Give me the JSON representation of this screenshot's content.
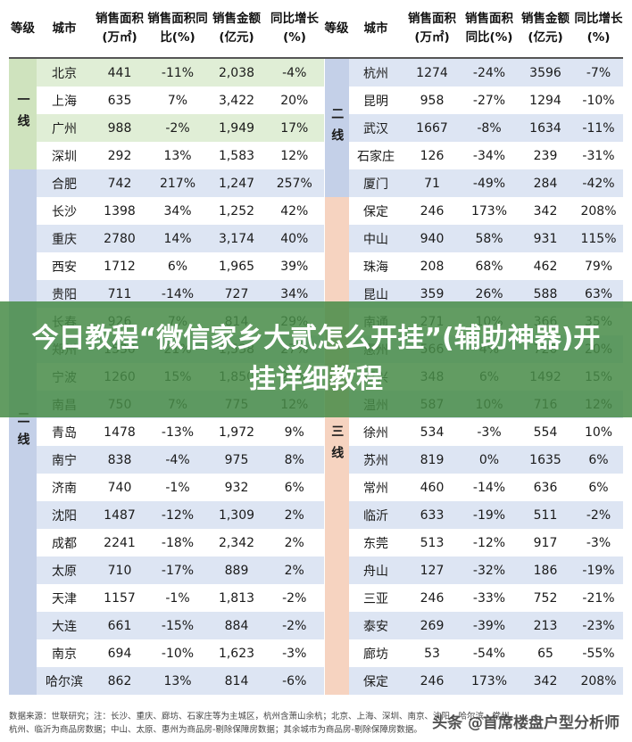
{
  "headers": [
    "等级",
    "城市",
    "销售面积(万㎡)",
    "销售面积同比(%)",
    "销售金额(亿元)",
    "同比增长(%)",
    "等级",
    "城市",
    "销售面积(万㎡)",
    "销售面积同比(%)",
    "销售金额(亿元)",
    "同比增长(%)"
  ],
  "tiers": {
    "left_tier1": "一线",
    "left_tier2": "二线",
    "right_tier2": "二线",
    "right_tier3": "三线"
  },
  "left_rows": [
    [
      "北京",
      "441",
      "-11%",
      "2,038",
      "-4%"
    ],
    [
      "上海",
      "635",
      "7%",
      "3,422",
      "20%"
    ],
    [
      "广州",
      "988",
      "-2%",
      "1,949",
      "17%"
    ],
    [
      "深圳",
      "292",
      "13%",
      "1,583",
      "12%"
    ],
    [
      "合肥",
      "742",
      "217%",
      "1,247",
      "257%"
    ],
    [
      "长沙",
      "1398",
      "34%",
      "1,252",
      "42%"
    ],
    [
      "重庆",
      "2780",
      "14%",
      "3,174",
      "40%"
    ],
    [
      "西安",
      "1712",
      "6%",
      "1,965",
      "39%"
    ],
    [
      "贵阳",
      "711",
      "-14%",
      "727",
      "34%"
    ],
    [
      "长春",
      "926",
      "7%",
      "814",
      "29%"
    ],
    [
      "郑州",
      "1530",
      "21%",
      "1,538",
      "27%"
    ],
    [
      "宁波",
      "1260",
      "15%",
      "1,850",
      "23%"
    ],
    [
      "南昌",
      "750",
      "7%",
      "775",
      "12%"
    ],
    [
      "青岛",
      "1478",
      "-13%",
      "1,972",
      "9%"
    ],
    [
      "南宁",
      "838",
      "-4%",
      "975",
      "8%"
    ],
    [
      "济南",
      "740",
      "-1%",
      "932",
      "6%"
    ],
    [
      "沈阳",
      "1487",
      "-12%",
      "1,309",
      "2%"
    ],
    [
      "成都",
      "2241",
      "-18%",
      "2,342",
      "2%"
    ],
    [
      "太原",
      "710",
      "-17%",
      "889",
      "2%"
    ],
    [
      "天津",
      "1157",
      "-1%",
      "1,813",
      "-2%"
    ],
    [
      "大连",
      "661",
      "-15%",
      "884",
      "-2%"
    ],
    [
      "南京",
      "694",
      "-10%",
      "1,623",
      "-3%"
    ],
    [
      "哈尔滨",
      "862",
      "13%",
      "814",
      "-6%"
    ]
  ],
  "right_rows": [
    [
      "杭州",
      "1274",
      "-24%",
      "3596",
      "-7%"
    ],
    [
      "昆明",
      "958",
      "-27%",
      "1294",
      "-10%"
    ],
    [
      "武汉",
      "1667",
      "-8%",
      "1634",
      "-11%"
    ],
    [
      "石家庄",
      "126",
      "-34%",
      "239",
      "-31%"
    ],
    [
      "厦门",
      "71",
      "-49%",
      "284",
      "-42%"
    ],
    [
      "保定",
      "246",
      "173%",
      "342",
      "208%"
    ],
    [
      "中山",
      "940",
      "58%",
      "931",
      "115%"
    ],
    [
      "珠海",
      "208",
      "68%",
      "462",
      "79%"
    ],
    [
      "昆山",
      "359",
      "26%",
      "588",
      "63%"
    ],
    [
      "南通",
      "271",
      "10%",
      "366",
      "35%"
    ],
    [
      "惠州",
      "566",
      "4%",
      "720",
      "20%"
    ],
    [
      "嘉兴",
      "348",
      "6%",
      "1492",
      "15%"
    ],
    [
      "温州",
      "587",
      "10%",
      "716",
      "12%"
    ],
    [
      "徐州",
      "534",
      "-3%",
      "554",
      "10%"
    ],
    [
      "苏州",
      "819",
      "0%",
      "1635",
      "6%"
    ],
    [
      "常州",
      "460",
      "-14%",
      "636",
      "6%"
    ],
    [
      "临沂",
      "633",
      "-19%",
      "511",
      "-2%"
    ],
    [
      "东莞",
      "513",
      "-12%",
      "917",
      "-3%"
    ],
    [
      "舟山",
      "127",
      "-32%",
      "186",
      "-19%"
    ],
    [
      "三亚",
      "246",
      "-33%",
      "752",
      "-21%"
    ],
    [
      "泰安",
      "269",
      "-39%",
      "213",
      "-23%"
    ],
    [
      "廊坊",
      "53",
      "-54%",
      "65",
      "-55%"
    ],
    [
      "保定",
      "246",
      "173%",
      "342",
      "208%"
    ]
  ],
  "banner": "今日教程“微信家乡大贰怎么开挂”(辅助神器)开挂详细教程",
  "footer_line1": "数据来源：世联研究；注：长沙、重庆、廊坊、石家庄等为主城区，杭州含萧山余杭；北京、上海、深圳、南京、沈阳、哈尔滨、常州、",
  "footer_line2": "杭州、临沂为商品房数据；中山、太原、惠州为商品房-剔除保障房数据；其余城市为商品房-剔除保障房数据。",
  "watermark": "头条 @首席楼盘户型分析师"
}
